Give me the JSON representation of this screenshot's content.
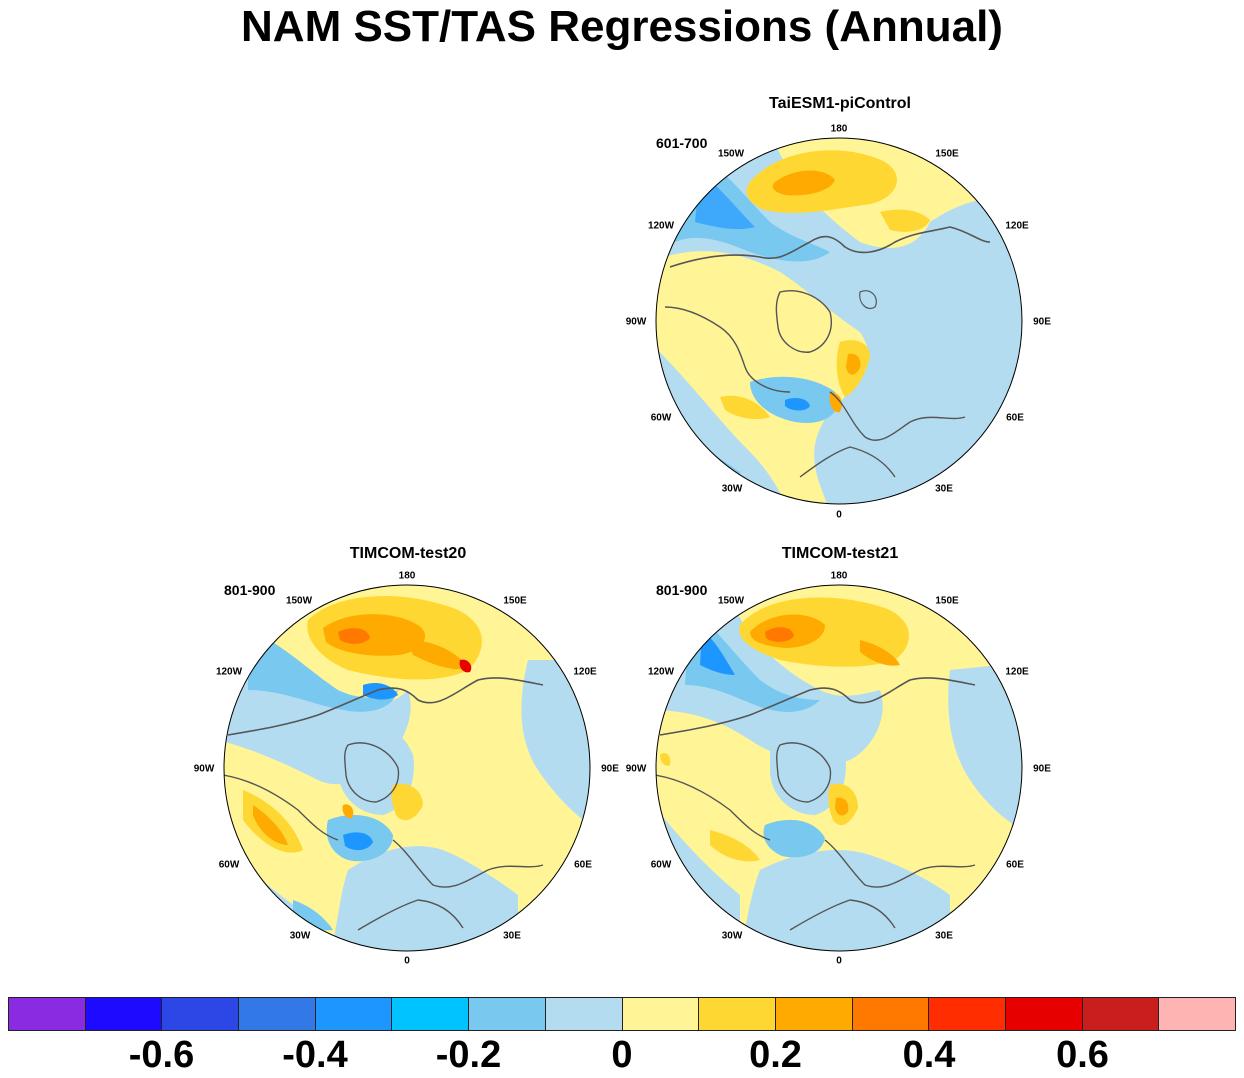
{
  "title": "NAM SST/TAS Regressions (Annual)",
  "lon_labels": [
    "180",
    "150E",
    "120E",
    "90E",
    "60E",
    "30E",
    "0",
    "30W",
    "60W",
    "90W",
    "120W",
    "150W"
  ],
  "panels": [
    {
      "name": "TaiESM1-piControl",
      "period": "601-700"
    },
    {
      "name": "TIMCOM-test20",
      "period": "801-900"
    },
    {
      "name": "TIMCOM-test21",
      "period": "801-900"
    }
  ],
  "colorbar": {
    "colors": [
      "#8a2be2",
      "#1e0aff",
      "#2d46e6",
      "#3278e6",
      "#1e96ff",
      "#00c3ff",
      "#78c8f0",
      "#b4dcf0",
      "#fff596",
      "#ffd732",
      "#ffaa00",
      "#ff7800",
      "#ff2d00",
      "#e60000",
      "#c81e1e",
      "#ffb4b4"
    ],
    "labels": [
      "-0.6",
      "-0.4",
      "-0.2",
      "0",
      "0.2",
      "0.4",
      "0.6"
    ]
  }
}
